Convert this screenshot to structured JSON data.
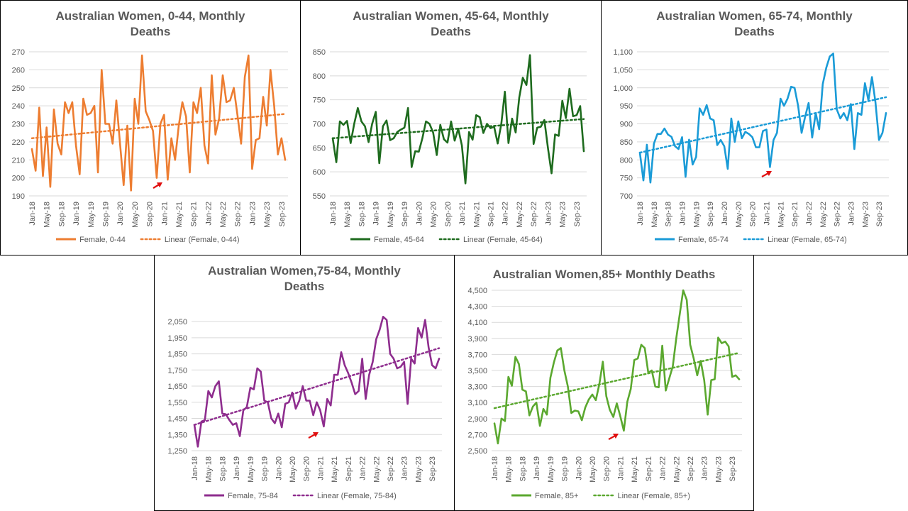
{
  "chart_data": [
    {
      "type": "line",
      "title": "Australian Women, 0-44, Monthly Deaths",
      "title_lines": [
        "Australian Women, 0-44, Monthly",
        "Deaths"
      ],
      "color": "#ED7D31",
      "xlabel": "",
      "ylabel": "",
      "x_tick_labels": [
        "Jan-18",
        "May-18",
        "Sep-18",
        "Jan-19",
        "May-19",
        "Sep-19",
        "Jan-20",
        "May-20",
        "Sep-20",
        "Jan-21",
        "May-21",
        "Sep-21",
        "Jan-22",
        "May-22",
        "Sep-22",
        "Jan-23",
        "May-23",
        "Sep-23"
      ],
      "y_ticks": [
        190,
        200,
        210,
        220,
        230,
        240,
        250,
        260,
        270
      ],
      "y_tick_labels": [
        "190",
        "200",
        "210",
        "220",
        "230",
        "240",
        "250",
        "260",
        "270"
      ],
      "ylim": [
        190,
        270
      ],
      "grid": true,
      "legend_position": "bottom",
      "series": [
        {
          "name": "Female, 0-44",
          "style": "solid",
          "values": [
            216,
            204,
            239,
            201,
            228,
            195,
            238,
            219,
            213,
            242,
            236,
            242,
            218,
            202,
            244,
            235,
            236,
            240,
            203,
            260,
            230,
            230,
            219,
            243,
            219,
            196,
            229,
            193,
            244,
            230,
            268,
            237,
            232,
            226,
            200,
            230,
            235,
            199,
            222,
            210,
            229,
            242,
            234,
            203,
            242,
            236,
            250,
            218,
            208,
            257,
            224,
            233,
            257,
            242,
            243,
            250,
            235,
            219,
            256,
            268,
            205,
            221,
            222,
            245,
            229,
            260,
            240,
            213,
            222,
            210
          ]
        },
        {
          "name": "Linear (Female, 0-44)",
          "style": "dotted",
          "trend": [
            222,
            235.5
          ]
        }
      ],
      "annotation": "red-arrow"
    },
    {
      "type": "line",
      "title": "Australian Women, 45-64, Monthly Deaths",
      "title_lines": [
        "Australian Women, 45-64, Monthly",
        "Deaths"
      ],
      "color": "#1E6B1E",
      "xlabel": "",
      "ylabel": "",
      "x_tick_labels": [
        "Jan-18",
        "May-18",
        "Sep-18",
        "Jan-19",
        "May-19",
        "Sep-19",
        "Jan-20",
        "May-20",
        "Sep-20",
        "Jan-21",
        "May-21",
        "Sep-21",
        "Jan-22",
        "May-22",
        "Sep-22",
        "Jan-23",
        "May-23",
        "Sep-23"
      ],
      "y_ticks": [
        550,
        600,
        650,
        700,
        750,
        800,
        850
      ],
      "y_tick_labels": [
        "550",
        "600",
        "650",
        "700",
        "750",
        "800",
        "850"
      ],
      "ylim": [
        550,
        850
      ],
      "grid": true,
      "legend_position": "bottom",
      "series": [
        {
          "name": "Female, 45-64",
          "style": "solid",
          "values": [
            670,
            620,
            705,
            698,
            706,
            660,
            700,
            733,
            705,
            695,
            662,
            700,
            725,
            618,
            695,
            707,
            666,
            670,
            683,
            688,
            692,
            733,
            610,
            643,
            642,
            670,
            705,
            700,
            682,
            635,
            698,
            668,
            661,
            705,
            665,
            690,
            655,
            576,
            683,
            667,
            718,
            714,
            681,
            700,
            691,
            694,
            659,
            700,
            767,
            660,
            711,
            682,
            755,
            796,
            781,
            843,
            658,
            692,
            694,
            708,
            650,
            597,
            678,
            675,
            748,
            712,
            773,
            716,
            718,
            737,
            643
          ]
        },
        {
          "name": "Linear (Female, 45-64)",
          "style": "dotted",
          "trend": [
            670,
            710
          ]
        }
      ],
      "annotation": "red-arrow"
    },
    {
      "type": "line",
      "title": "Australian Women, 65-74, Monthly Deaths",
      "title_lines": [
        "Australian Women, 65-74, Monthly",
        "Deaths"
      ],
      "color": "#1A9BD7",
      "xlabel": "",
      "ylabel": "",
      "x_tick_labels": [
        "Jan-18",
        "May-18",
        "Sep-18",
        "Jan-19",
        "May-19",
        "Sep-19",
        "Jan-20",
        "May-20",
        "Sep-20",
        "Jan-21",
        "May-21",
        "Sep-21",
        "Jan-22",
        "May-22",
        "Sep-22",
        "Jan-23",
        "May-23",
        "Sep-23"
      ],
      "y_ticks": [
        700,
        750,
        800,
        850,
        900,
        950,
        1000,
        1050,
        1100
      ],
      "y_tick_labels": [
        "700",
        "750",
        "800",
        "850",
        "900",
        "950",
        "1,000",
        "1,050",
        "1,100"
      ],
      "ylim": [
        700,
        1100
      ],
      "grid": true,
      "legend_position": "bottom",
      "series": [
        {
          "name": "Female, 65-74",
          "style": "solid",
          "values": [
            820,
            743,
            842,
            737,
            845,
            872,
            872,
            887,
            870,
            864,
            838,
            830,
            863,
            753,
            856,
            787,
            808,
            943,
            925,
            952,
            915,
            910,
            841,
            855,
            838,
            775,
            915,
            850,
            907,
            860,
            878,
            872,
            863,
            835,
            835,
            880,
            884,
            780,
            855,
            875,
            970,
            950,
            970,
            1003,
            1000,
            950,
            875,
            920,
            958,
            862,
            930,
            885,
            1010,
            1055,
            1087,
            1095,
            940,
            915,
            930,
            910,
            955,
            830,
            930,
            925,
            1013,
            965,
            1030,
            960,
            855,
            875,
            930
          ]
        },
        {
          "name": "Linear (Female, 65-74)",
          "style": "dotted",
          "trend": [
            820,
            974
          ]
        }
      ],
      "annotation": "red-arrow"
    },
    {
      "type": "line",
      "title": "Australian Women,75-84, Monthly Deaths",
      "title_lines": [
        "Australian Women,75-84, Monthly",
        "Deaths"
      ],
      "color": "#8E2D8E",
      "xlabel": "",
      "ylabel": "",
      "x_tick_labels": [
        "Jan-18",
        "May-18",
        "Sep-18",
        "Jan-19",
        "May-19",
        "Sep-19",
        "Jan-20",
        "May-20",
        "Sep-20",
        "Jan-21",
        "May-21",
        "Sep-21",
        "Jan-22",
        "May-22",
        "Sep-22",
        "Jan-23",
        "May-23",
        "Sep-23"
      ],
      "y_ticks": [
        1250,
        1350,
        1450,
        1550,
        1650,
        1750,
        1850,
        1950,
        2050
      ],
      "y_tick_labels": [
        "1,250",
        "1,350",
        "1,450",
        "1,550",
        "1,650",
        "1,750",
        "1,850",
        "1,950",
        "2,050"
      ],
      "ylim": [
        1250,
        2090
      ],
      "grid": true,
      "legend_position": "bottom",
      "series": [
        {
          "name": "Female, 75-84",
          "style": "solid",
          "values": [
            1410,
            1275,
            1430,
            1440,
            1620,
            1580,
            1650,
            1680,
            1480,
            1475,
            1440,
            1410,
            1420,
            1340,
            1500,
            1520,
            1640,
            1630,
            1760,
            1740,
            1560,
            1550,
            1450,
            1420,
            1480,
            1395,
            1540,
            1550,
            1610,
            1510,
            1560,
            1650,
            1560,
            1560,
            1470,
            1550,
            1500,
            1400,
            1570,
            1530,
            1720,
            1720,
            1860,
            1780,
            1730,
            1670,
            1600,
            1620,
            1820,
            1570,
            1720,
            1800,
            1940,
            2000,
            2080,
            2060,
            1850,
            1820,
            1760,
            1770,
            1800,
            1540,
            1820,
            1790,
            2010,
            1950,
            2060,
            1890,
            1780,
            1760,
            1820
          ]
        },
        {
          "name": "Linear (Female, 75-84)",
          "style": "dotted",
          "trend": [
            1410,
            1885
          ]
        }
      ],
      "annotation": "red-arrow"
    },
    {
      "type": "line",
      "title": "Australian Women,85+ Monthly Deaths",
      "title_lines": [
        "Australian Women,85+ Monthly Deaths"
      ],
      "color": "#5BA82F",
      "xlabel": "",
      "ylabel": "",
      "x_tick_labels": [
        "Jan-18",
        "May-18",
        "Sep-18",
        "Jan-19",
        "May-19",
        "Sep-19",
        "Jan-20",
        "May-20",
        "Sep-20",
        "Jan-21",
        "May-21",
        "Sep-21",
        "Jan-22",
        "May-22",
        "Sep-22",
        "Jan-23",
        "May-23",
        "Sep-23"
      ],
      "y_ticks": [
        2500,
        2700,
        2900,
        3100,
        3300,
        3500,
        3700,
        3900,
        4100,
        4300,
        4500
      ],
      "y_tick_labels": [
        "2,500",
        "2,700",
        "2,900",
        "3,100",
        "3,300",
        "3,500",
        "3,700",
        "3,900",
        "4,100",
        "4,300",
        "4,500"
      ],
      "ylim": [
        2500,
        4500
      ],
      "grid": true,
      "legend_position": "bottom",
      "series": [
        {
          "name": "Female, 85+",
          "style": "solid",
          "values": [
            2840,
            2590,
            2900,
            2870,
            3420,
            3310,
            3670,
            3580,
            3260,
            3240,
            2940,
            3050,
            3100,
            2810,
            3020,
            2950,
            3410,
            3600,
            3750,
            3780,
            3500,
            3300,
            2970,
            3000,
            2990,
            2880,
            3040,
            3140,
            3200,
            3130,
            3330,
            3610,
            3180,
            3010,
            2920,
            3090,
            2930,
            2750,
            3110,
            3270,
            3630,
            3650,
            3820,
            3780,
            3470,
            3500,
            3300,
            3290,
            3810,
            3250,
            3400,
            3550,
            3900,
            4200,
            4500,
            4380,
            3820,
            3650,
            3440,
            3620,
            3380,
            2950,
            3380,
            3390,
            3910,
            3840,
            3860,
            3800,
            3420,
            3440,
            3390
          ]
        },
        {
          "name": "Linear (Female, 85+)",
          "style": "dotted",
          "trend": [
            3030,
            3720
          ]
        }
      ],
      "annotation": "red-arrow"
    }
  ]
}
